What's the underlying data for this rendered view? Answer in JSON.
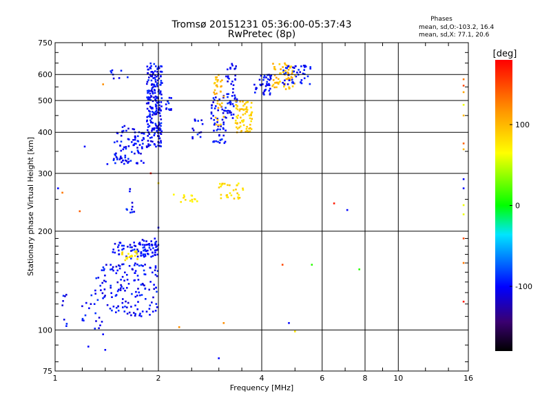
{
  "title_line1": "Tromsø 20151231 05:36:00-05:37:43",
  "title_line2": "RwPretec (8p)",
  "stats": {
    "heading": "Phases",
    "line_o": "mean, sd,O:-103.2, 16.4",
    "line_x": "mean, sd,X: 77.1, 20.6"
  },
  "colorbar": {
    "label": "[deg]",
    "ticks": [
      "100",
      "0",
      "-100"
    ],
    "tick_values": [
      100,
      0,
      -100
    ],
    "range": [
      -180,
      180
    ]
  },
  "chart_data": {
    "type": "scatter",
    "xlabel": "Frequency [MHz]",
    "ylabel": "Stationary phase Virtual Height [km]",
    "xscale": "log",
    "yscale": "log",
    "xlim": [
      1,
      16
    ],
    "ylim": [
      75,
      750
    ],
    "xticks": [
      "1",
      "2",
      "4",
      "6",
      "8",
      "10",
      "16"
    ],
    "xtick_values": [
      1,
      2,
      4,
      6,
      8,
      10,
      16
    ],
    "yticks": [
      "750",
      "600",
      "500",
      "400",
      "300",
      "200",
      "100",
      "75"
    ],
    "ytick_values": [
      750,
      600,
      500,
      400,
      300,
      200,
      100,
      75
    ],
    "grid": true,
    "clusters": [
      {
        "f": [
          1.78,
          2.0
        ],
        "h": [
          165,
          190
        ],
        "n": 50,
        "phase": -100
      },
      {
        "f": [
          1.48,
          1.82
        ],
        "h": [
          320,
          420
        ],
        "n": 90,
        "phase": -100
      },
      {
        "f": [
          1.85,
          2.05
        ],
        "h": [
          360,
          650
        ],
        "n": 220,
        "phase": -100
      },
      {
        "f": [
          2.1,
          2.2
        ],
        "h": [
          440,
          520
        ],
        "n": 12,
        "phase": -100
      },
      {
        "f": [
          2.5,
          2.7
        ],
        "h": [
          380,
          440
        ],
        "n": 14,
        "phase": -100
      },
      {
        "f": [
          2.85,
          3.15
        ],
        "h": [
          370,
          520
        ],
        "n": 55,
        "phase": -100
      },
      {
        "f": [
          2.9,
          3.1
        ],
        "h": [
          420,
          600
        ],
        "n": 35,
        "phase": 100
      },
      {
        "f": [
          3.15,
          3.4
        ],
        "h": [
          440,
          650
        ],
        "n": 50,
        "phase": -100
      },
      {
        "f": [
          3.35,
          3.75
        ],
        "h": [
          400,
          500
        ],
        "n": 70,
        "phase": 90
      },
      {
        "f": [
          3.8,
          4.3
        ],
        "h": [
          520,
          600
        ],
        "n": 40,
        "phase": -100
      },
      {
        "f": [
          4.3,
          5.0
        ],
        "h": [
          540,
          650
        ],
        "n": 60,
        "phase": 100
      },
      {
        "f": [
          4.6,
          5.6
        ],
        "h": [
          560,
          640
        ],
        "n": 45,
        "phase": -100
      },
      {
        "f": [
          2.2,
          2.6
        ],
        "h": [
          245,
          260
        ],
        "n": 14,
        "phase": 80
      },
      {
        "f": [
          3.0,
          3.55
        ],
        "h": [
          250,
          280
        ],
        "n": 30,
        "phase": 80
      },
      {
        "f": [
          1.45,
          1.82
        ],
        "h": [
          165,
          185
        ],
        "n": 45,
        "phase": -100
      },
      {
        "f": [
          1.55,
          1.75
        ],
        "h": [
          162,
          175
        ],
        "n": 20,
        "phase": 80
      },
      {
        "f": [
          1.3,
          2.0
        ],
        "h": [
          110,
          160
        ],
        "n": 150,
        "phase": -100
      },
      {
        "f": [
          1.05,
          1.4
        ],
        "h": [
          100,
          130
        ],
        "n": 25,
        "phase": -100
      },
      {
        "f": [
          1.6,
          1.7
        ],
        "h": [
          220,
          270
        ],
        "n": 10,
        "phase": -100
      },
      {
        "f": [
          1.4,
          1.65
        ],
        "h": [
          580,
          620
        ],
        "n": 8,
        "phase": -100
      }
    ],
    "points": [
      {
        "f": 1.02,
        "h": 270,
        "phase": -100
      },
      {
        "f": 1.05,
        "h": 262,
        "phase": 130
      },
      {
        "f": 1.18,
        "h": 230,
        "phase": 140
      },
      {
        "f": 1.22,
        "h": 362,
        "phase": -100
      },
      {
        "f": 1.25,
        "h": 89,
        "phase": -100
      },
      {
        "f": 1.38,
        "h": 97,
        "phase": -100
      },
      {
        "f": 1.4,
        "h": 87,
        "phase": -100
      },
      {
        "f": 1.38,
        "h": 560,
        "phase": 120
      },
      {
        "f": 1.42,
        "h": 320,
        "phase": -100
      },
      {
        "f": 1.9,
        "h": 300,
        "phase": 170
      },
      {
        "f": 2.0,
        "h": 205,
        "phase": -100
      },
      {
        "f": 2.0,
        "h": 280,
        "phase": 80
      },
      {
        "f": 2.3,
        "h": 102,
        "phase": 120
      },
      {
        "f": 3.0,
        "h": 82,
        "phase": -100
      },
      {
        "f": 3.1,
        "h": 105,
        "phase": 120
      },
      {
        "f": 4.6,
        "h": 158,
        "phase": 150
      },
      {
        "f": 4.8,
        "h": 105,
        "phase": -100
      },
      {
        "f": 5.0,
        "h": 99,
        "phase": 80
      },
      {
        "f": 5.6,
        "h": 158,
        "phase": 10
      },
      {
        "f": 6.5,
        "h": 243,
        "phase": 170
      },
      {
        "f": 7.1,
        "h": 232,
        "phase": -100
      },
      {
        "f": 7.7,
        "h": 153,
        "phase": 10
      },
      {
        "f": 15.5,
        "h": 580,
        "phase": 130
      },
      {
        "f": 15.5,
        "h": 555,
        "phase": 150
      },
      {
        "f": 15.5,
        "h": 530,
        "phase": 110
      },
      {
        "f": 15.5,
        "h": 485,
        "phase": 60
      },
      {
        "f": 15.5,
        "h": 450,
        "phase": 100
      },
      {
        "f": 15.5,
        "h": 370,
        "phase": 140
      },
      {
        "f": 15.5,
        "h": 355,
        "phase": 100
      },
      {
        "f": 15.5,
        "h": 288,
        "phase": -100
      },
      {
        "f": 15.5,
        "h": 270,
        "phase": -100
      },
      {
        "f": 15.5,
        "h": 240,
        "phase": 60
      },
      {
        "f": 15.5,
        "h": 225,
        "phase": 60
      },
      {
        "f": 15.5,
        "h": 190,
        "phase": 150
      },
      {
        "f": 15.5,
        "h": 160,
        "phase": 130
      },
      {
        "f": 15.5,
        "h": 122,
        "phase": 170
      }
    ]
  }
}
